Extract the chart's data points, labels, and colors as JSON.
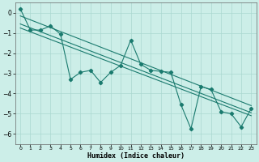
{
  "xlabel": "Humidex (Indice chaleur)",
  "bg_color": "#cceee8",
  "grid_color": "#aad8d0",
  "line_color": "#1a7a6e",
  "marker": "D",
  "marker_size": 2.2,
  "xlim": [
    -0.5,
    23.5
  ],
  "ylim": [
    -6.5,
    0.5
  ],
  "xticks": [
    0,
    1,
    2,
    3,
    4,
    5,
    6,
    7,
    8,
    9,
    10,
    11,
    12,
    13,
    14,
    15,
    16,
    17,
    18,
    19,
    20,
    21,
    22,
    23
  ],
  "yticks": [
    0,
    -1,
    -2,
    -3,
    -4,
    -5,
    -6
  ],
  "series": [
    [
      0,
      0.2
    ],
    [
      1,
      -0.85
    ],
    [
      2,
      -0.85
    ],
    [
      3,
      -0.65
    ],
    [
      4,
      -1.05
    ],
    [
      5,
      -3.3
    ],
    [
      6,
      -2.95
    ],
    [
      7,
      -2.85
    ],
    [
      8,
      -3.45
    ],
    [
      9,
      -2.95
    ],
    [
      10,
      -2.6
    ],
    [
      11,
      -1.35
    ],
    [
      12,
      -2.55
    ],
    [
      13,
      -2.85
    ],
    [
      14,
      -2.9
    ],
    [
      15,
      -2.95
    ],
    [
      16,
      -4.55
    ],
    [
      17,
      -5.75
    ],
    [
      18,
      -3.65
    ],
    [
      19,
      -3.8
    ],
    [
      20,
      -4.9
    ],
    [
      21,
      -5.0
    ],
    [
      22,
      -5.65
    ],
    [
      23,
      -4.75
    ]
  ],
  "linear_series": [
    [
      0,
      -0.15
    ],
    [
      23,
      -4.6
    ]
  ],
  "line2_series": [
    [
      0,
      -0.55
    ],
    [
      23,
      -4.95
    ]
  ],
  "line3_series": [
    [
      0,
      -0.75
    ],
    [
      23,
      -5.1
    ]
  ]
}
